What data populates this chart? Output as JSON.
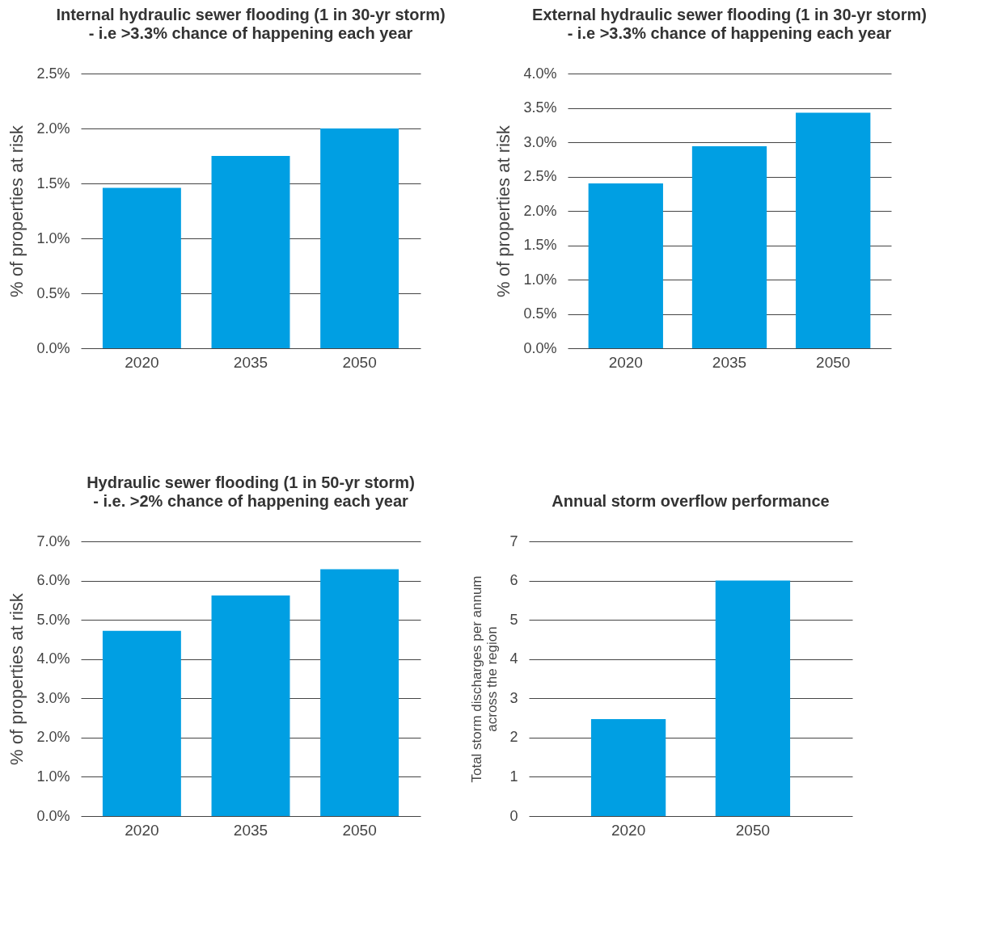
{
  "chart_data": [
    {
      "type": "bar",
      "title": "Internal hydraulic sewer flooding (1 in 30-yr storm)",
      "subtitle": "- i.e >3.3% chance of happening each year",
      "ylabel": "% of properties at risk",
      "categories": [
        "2020",
        "2035",
        "2050"
      ],
      "values": [
        1.46,
        1.75,
        2.0
      ],
      "color": "#009fe3",
      "ylim": [
        0,
        2.5
      ],
      "yticks": [
        {
          "value": 0,
          "label": "0.0%"
        },
        {
          "value": 0.5,
          "label": "0.5%"
        },
        {
          "value": 1,
          "label": "1.0%"
        },
        {
          "value": 1.5,
          "label": "1.5%"
        },
        {
          "value": 2,
          "label": "2.0%"
        },
        {
          "value": 2.5,
          "label": "2.5%"
        }
      ],
      "grid": "y"
    },
    {
      "type": "bar",
      "title": "External hydraulic sewer flooding (1 in 30-yr storm)",
      "subtitle": "- i.e >3.3% chance of happening each year",
      "ylabel": "% of properties at risk",
      "categories": [
        "2020",
        "2035",
        "2050"
      ],
      "values": [
        2.4,
        2.94,
        3.43
      ],
      "color": "#009fe3",
      "ylim": [
        0,
        4
      ],
      "yticks": [
        {
          "value": 0,
          "label": "0.0%"
        },
        {
          "value": 0.5,
          "label": "0.5%"
        },
        {
          "value": 1,
          "label": "1.0%"
        },
        {
          "value": 1.5,
          "label": "1.5%"
        },
        {
          "value": 2,
          "label": "2.0%"
        },
        {
          "value": 2.5,
          "label": "2.5%"
        },
        {
          "value": 3,
          "label": "3.0%"
        },
        {
          "value": 3.5,
          "label": "3.5%"
        },
        {
          "value": 4,
          "label": "4.0%"
        }
      ],
      "grid": "y"
    },
    {
      "type": "bar",
      "title": "Hydraulic sewer flooding (1 in 50-yr storm)",
      "subtitle": "- i.e. >2% chance of happening each year",
      "ylabel": "% of properties at risk",
      "categories": [
        "2020",
        "2035",
        "2050"
      ],
      "values": [
        4.72,
        5.62,
        6.29
      ],
      "color": "#009fe3",
      "ylim": [
        0,
        7
      ],
      "yticks": [
        {
          "value": 0,
          "label": "0.0%"
        },
        {
          "value": 1,
          "label": "1.0%"
        },
        {
          "value": 2,
          "label": "2.0%"
        },
        {
          "value": 3,
          "label": "3.0%"
        },
        {
          "value": 4,
          "label": "4.0%"
        },
        {
          "value": 5,
          "label": "5.0%"
        },
        {
          "value": 6,
          "label": "6.0%"
        },
        {
          "value": 7,
          "label": "7.0%"
        }
      ],
      "grid": "y"
    },
    {
      "type": "bar",
      "title": "Annual storm overflow performance",
      "ylabel": "Total storm discharges per annum\nacross the region",
      "categories": [
        "2020",
        "2050"
      ],
      "values": [
        2.47,
        6.0
      ],
      "color": "#009fe3",
      "ylim": [
        0,
        7
      ],
      "yticks": [
        0,
        1,
        2,
        3,
        4,
        5,
        6,
        7
      ],
      "grid": "y"
    }
  ]
}
